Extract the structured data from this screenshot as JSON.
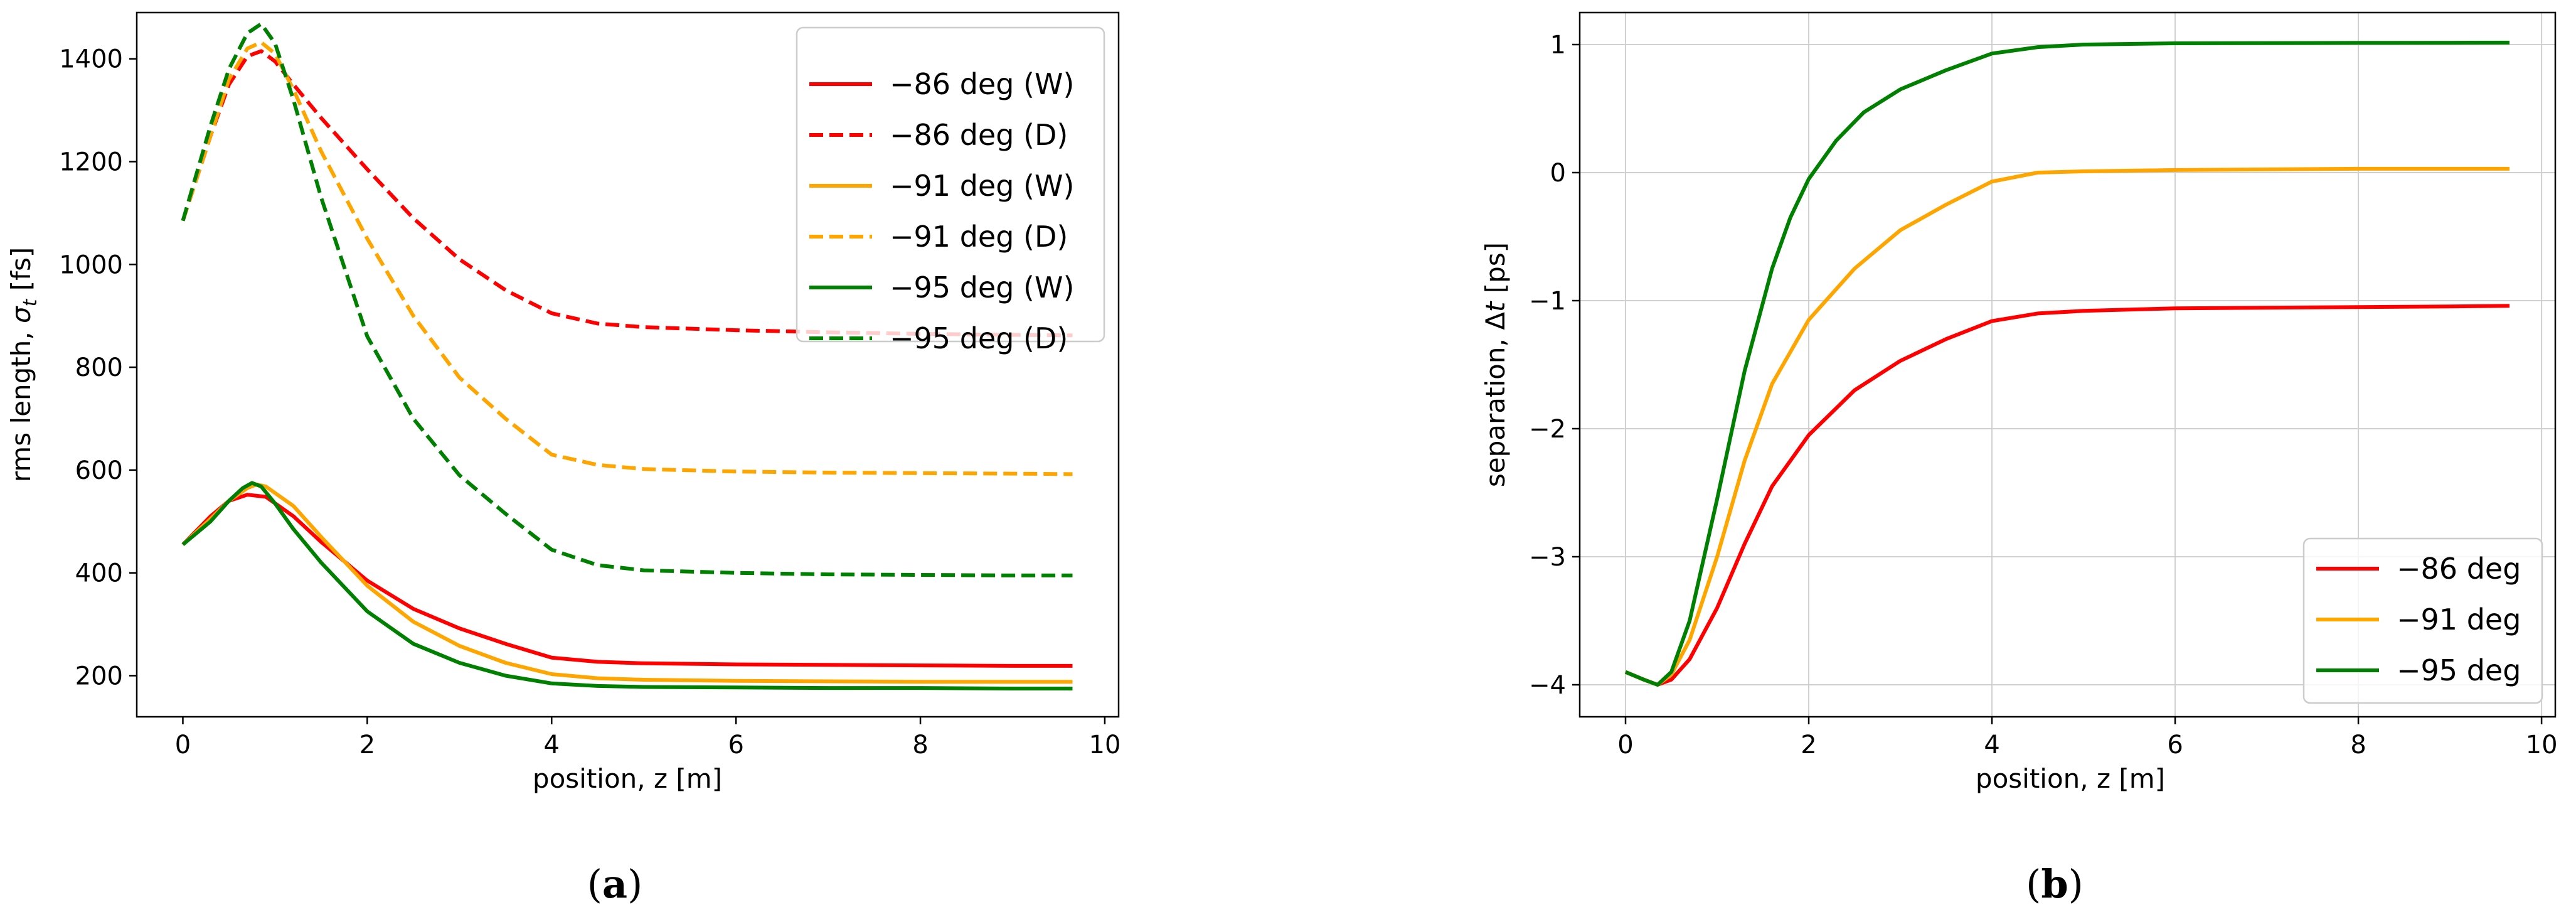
{
  "chart_data": [
    {
      "type": "line",
      "panel_label": "a",
      "xlabel": "position, z [m]",
      "ylabel": "rms length, σ_t [fs]",
      "ylabel_parts": [
        "rms length, ",
        "σ",
        "t",
        " [fs]"
      ],
      "xlim": [
        -0.5,
        10.15
      ],
      "ylim": [
        120,
        1490
      ],
      "xticks": [
        0,
        2,
        4,
        6,
        8,
        10
      ],
      "yticks": [
        200,
        400,
        600,
        800,
        1000,
        1200,
        1400
      ],
      "grid": false,
      "legend_position": "top-right",
      "series": [
        {
          "name": "−86 deg (W)",
          "color": "#ff0000",
          "dash": "solid",
          "x": [
            0,
            0.3,
            0.5,
            0.7,
            0.9,
            1.2,
            1.5,
            2.0,
            2.5,
            3.0,
            3.5,
            4.0,
            4.5,
            5.0,
            6.0,
            7.0,
            8.0,
            9.0,
            9.65
          ],
          "y": [
            455,
            510,
            540,
            552,
            548,
            510,
            460,
            385,
            330,
            292,
            262,
            235,
            227,
            224,
            222,
            221,
            220,
            219,
            219
          ]
        },
        {
          "name": "−86 deg (D)",
          "color": "#ff0000",
          "dash": "dashed",
          "x": [
            0,
            0.3,
            0.5,
            0.7,
            0.85,
            1.0,
            1.2,
            1.5,
            2.0,
            2.5,
            3.0,
            3.5,
            4.0,
            4.5,
            5.0,
            6.0,
            7.0,
            8.0,
            9.0,
            9.65
          ],
          "y": [
            1085,
            1250,
            1350,
            1405,
            1415,
            1395,
            1350,
            1285,
            1185,
            1090,
            1010,
            950,
            905,
            885,
            878,
            872,
            868,
            865,
            863,
            862
          ]
        },
        {
          "name": "−91 deg (W)",
          "color": "#ffa500",
          "dash": "solid",
          "x": [
            0,
            0.3,
            0.5,
            0.7,
            0.8,
            0.9,
            1.2,
            1.5,
            2.0,
            2.5,
            3.0,
            3.5,
            4.0,
            4.5,
            5.0,
            6.0,
            7.0,
            8.0,
            9.0,
            9.65
          ],
          "y": [
            455,
            505,
            540,
            565,
            572,
            568,
            530,
            470,
            375,
            305,
            258,
            225,
            203,
            195,
            192,
            190,
            189,
            188,
            188,
            188
          ]
        },
        {
          "name": "−91 deg (D)",
          "color": "#ffa500",
          "dash": "dashed",
          "x": [
            0,
            0.3,
            0.5,
            0.7,
            0.85,
            1.0,
            1.2,
            1.5,
            2.0,
            2.5,
            3.0,
            3.5,
            4.0,
            4.5,
            5.0,
            6.0,
            7.0,
            8.0,
            9.0,
            9.65
          ],
          "y": [
            1085,
            1250,
            1360,
            1420,
            1432,
            1410,
            1340,
            1220,
            1050,
            900,
            780,
            700,
            630,
            610,
            602,
            597,
            595,
            594,
            593,
            592
          ]
        },
        {
          "name": "−95 deg (W)",
          "color": "#008000",
          "dash": "solid",
          "x": [
            0,
            0.3,
            0.5,
            0.65,
            0.75,
            0.85,
            1.0,
            1.2,
            1.5,
            2.0,
            2.5,
            3.0,
            3.5,
            4.0,
            4.5,
            5.0,
            6.0,
            7.0,
            8.0,
            9.0,
            9.65
          ],
          "y": [
            455,
            500,
            540,
            565,
            575,
            568,
            535,
            485,
            420,
            325,
            262,
            225,
            200,
            185,
            180,
            178,
            177,
            176,
            176,
            175,
            175
          ]
        },
        {
          "name": "−95 deg (D)",
          "color": "#008000",
          "dash": "dashed",
          "x": [
            0,
            0.3,
            0.5,
            0.7,
            0.85,
            1.0,
            1.2,
            1.5,
            2.0,
            2.5,
            3.0,
            3.5,
            4.0,
            4.5,
            5.0,
            6.0,
            7.0,
            8.0,
            9.0,
            9.65
          ],
          "y": [
            1085,
            1270,
            1380,
            1450,
            1468,
            1430,
            1320,
            1130,
            860,
            700,
            590,
            515,
            445,
            415,
            405,
            400,
            397,
            396,
            395,
            395
          ]
        }
      ]
    },
    {
      "type": "line",
      "panel_label": "b",
      "xlabel": "position, z [m]",
      "ylabel": "separation, Δt [ps]",
      "ylabel_parts": [
        "separation, Δ",
        "t",
        " [ps]"
      ],
      "xlim": [
        -0.5,
        10.15
      ],
      "ylim": [
        -4.25,
        1.25
      ],
      "xticks": [
        0,
        2,
        4,
        6,
        8,
        10
      ],
      "yticks": [
        -4,
        -3,
        -2,
        -1,
        0,
        1
      ],
      "ytick_labels": [
        "−4",
        "−3",
        "−2",
        "−1",
        "0",
        "1"
      ],
      "grid": true,
      "legend_position": "bottom-right",
      "series": [
        {
          "name": "−86 deg",
          "color": "#ff0000",
          "x": [
            0,
            0.2,
            0.35,
            0.5,
            0.7,
            1.0,
            1.3,
            1.6,
            2.0,
            2.5,
            3.0,
            3.5,
            4.0,
            4.5,
            5.0,
            6.0,
            7.0,
            8.0,
            9.0,
            9.65
          ],
          "y": [
            -3.9,
            -3.96,
            -4.0,
            -3.96,
            -3.8,
            -3.4,
            -2.9,
            -2.45,
            -2.05,
            -1.7,
            -1.47,
            -1.3,
            -1.16,
            -1.1,
            -1.08,
            -1.06,
            -1.055,
            -1.05,
            -1.045,
            -1.04
          ]
        },
        {
          "name": "−91 deg",
          "color": "#ffa500",
          "x": [
            0,
            0.2,
            0.35,
            0.5,
            0.7,
            1.0,
            1.3,
            1.6,
            2.0,
            2.5,
            3.0,
            3.5,
            4.0,
            4.5,
            5.0,
            6.0,
            7.0,
            8.0,
            9.0,
            9.65
          ],
          "y": [
            -3.9,
            -3.96,
            -4.0,
            -3.92,
            -3.65,
            -3.0,
            -2.25,
            -1.65,
            -1.15,
            -0.75,
            -0.45,
            -0.25,
            -0.07,
            0.0,
            0.01,
            0.02,
            0.025,
            0.03,
            0.03,
            0.03
          ]
        },
        {
          "name": "−95 deg",
          "color": "#008000",
          "x": [
            0,
            0.2,
            0.35,
            0.5,
            0.7,
            1.0,
            1.3,
            1.6,
            1.8,
            2.0,
            2.3,
            2.6,
            3.0,
            3.5,
            4.0,
            4.5,
            5.0,
            6.0,
            7.0,
            8.0,
            9.0,
            9.65
          ],
          "y": [
            -3.9,
            -3.96,
            -4.0,
            -3.9,
            -3.5,
            -2.55,
            -1.55,
            -0.75,
            -0.35,
            -0.05,
            0.25,
            0.47,
            0.65,
            0.8,
            0.93,
            0.98,
            1.0,
            1.01,
            1.012,
            1.013,
            1.014,
            1.015
          ]
        }
      ]
    }
  ]
}
